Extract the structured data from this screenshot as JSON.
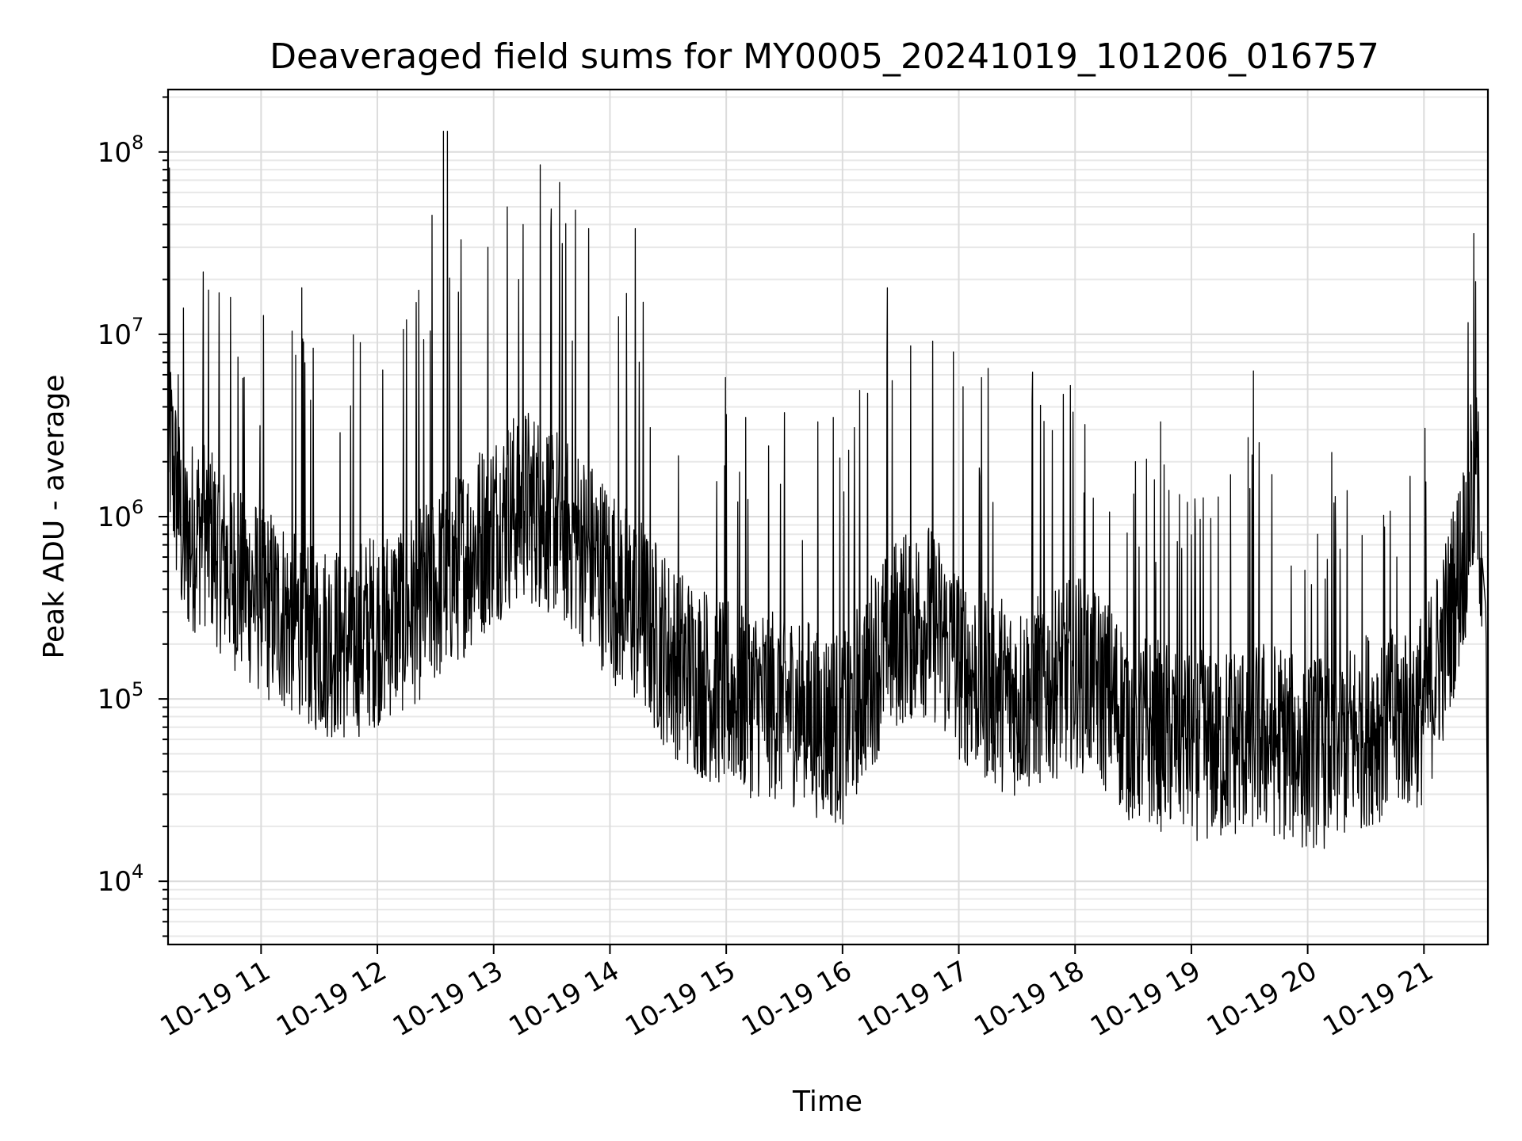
{
  "chart_data": {
    "type": "line",
    "title": "Deaveraged field sums for MY0005_20241019_101206_016757",
    "xlabel": "Time",
    "ylabel": "Peak ADU - average",
    "yscale": "log",
    "ylim": [
      4500,
      220000000
    ],
    "xlim": [
      "10-19 10:12",
      "10-19 21:33"
    ],
    "grid": true,
    "line_color": "#000000",
    "x_ticks": [
      {
        "time": "10-19 11",
        "label": "10-19 11"
      },
      {
        "time": "10-19 12",
        "label": "10-19 12"
      },
      {
        "time": "10-19 13",
        "label": "10-19 13"
      },
      {
        "time": "10-19 14",
        "label": "10-19 14"
      },
      {
        "time": "10-19 15",
        "label": "10-19 15"
      },
      {
        "time": "10-19 16",
        "label": "10-19 16"
      },
      {
        "time": "10-19 17",
        "label": "10-19 17"
      },
      {
        "time": "10-19 18",
        "label": "10-19 18"
      },
      {
        "time": "10-19 19",
        "label": "10-19 19"
      },
      {
        "time": "10-19 20",
        "label": "10-19 20"
      },
      {
        "time": "10-19 21",
        "label": "10-19 21"
      }
    ],
    "y_ticks": [
      {
        "value": 10000,
        "base": "10",
        "exp": "4"
      },
      {
        "value": 100000,
        "base": "10",
        "exp": "5"
      },
      {
        "value": 1000000,
        "base": "10",
        "exp": "6"
      },
      {
        "value": 10000000,
        "base": "10",
        "exp": "7"
      },
      {
        "value": 100000000,
        "base": "10",
        "exp": "8"
      }
    ],
    "series": [
      {
        "points": [
          [
            "10-19 10:12",
            3000000
          ],
          [
            "10-19 10:20",
            700000
          ],
          [
            "10-19 10:30",
            900000
          ],
          [
            "10-19 10:40",
            600000
          ],
          [
            "10-19 10:50",
            450000
          ],
          [
            "10-19 11:00",
            350000
          ],
          [
            "10-19 11:15",
            280000
          ],
          [
            "10-19 11:30",
            220000
          ],
          [
            "10-19 11:45",
            200000
          ],
          [
            "10-19 12:00",
            250000
          ],
          [
            "10-19 12:15",
            300000
          ],
          [
            "10-19 12:30",
            400000
          ],
          [
            "10-19 12:45",
            600000
          ],
          [
            "10-19 13:00",
            900000
          ],
          [
            "10-19 13:15",
            1200000
          ],
          [
            "10-19 13:30",
            1000000
          ],
          [
            "10-19 13:45",
            700000
          ],
          [
            "10-19 14:00",
            450000
          ],
          [
            "10-19 14:15",
            300000
          ],
          [
            "10-19 14:30",
            180000
          ],
          [
            "10-19 14:45",
            130000
          ],
          [
            "10-19 15:00",
            110000
          ],
          [
            "10-19 15:15",
            100000
          ],
          [
            "10-19 15:30",
            95000
          ],
          [
            "10-19 15:45",
            80000
          ],
          [
            "10-19 16:00",
            70000
          ],
          [
            "10-19 16:15",
            150000
          ],
          [
            "10-19 16:30",
            250000
          ],
          [
            "10-19 16:45",
            280000
          ],
          [
            "10-19 17:00",
            160000
          ],
          [
            "10-19 17:15",
            120000
          ],
          [
            "10-19 17:30",
            100000
          ],
          [
            "10-19 17:45",
            120000
          ],
          [
            "10-19 18:00",
            150000
          ],
          [
            "10-19 18:15",
            110000
          ],
          [
            "10-19 18:30",
            70000
          ],
          [
            "10-19 18:45",
            65000
          ],
          [
            "10-19 19:00",
            60000
          ],
          [
            "10-19 19:15",
            55000
          ],
          [
            "10-19 19:30",
            65000
          ],
          [
            "10-19 19:45",
            60000
          ],
          [
            "10-19 20:00",
            50000
          ],
          [
            "10-19 20:15",
            55000
          ],
          [
            "10-19 20:30",
            70000
          ],
          [
            "10-19 20:45",
            80000
          ],
          [
            "10-19 21:00",
            90000
          ],
          [
            "10-19 21:10",
            200000
          ],
          [
            "10-19 21:20",
            600000
          ],
          [
            "10-19 21:27",
            1700000
          ],
          [
            "10-19 21:32",
            300000
          ],
          [
            "10-19 21:33",
            7000
          ]
        ],
        "spikes": [
          [
            "10-19 10:17",
            6000000
          ],
          [
            "10-19 10:30",
            22000000
          ],
          [
            "10-19 10:48",
            7500000
          ],
          [
            "10-19 11:21",
            18000000
          ],
          [
            "10-19 11:51",
            9000000
          ],
          [
            "10-19 12:15",
            12000000
          ],
          [
            "10-19 12:28",
            45000000
          ],
          [
            "10-19 12:34",
            130000000
          ],
          [
            "10-19 12:36",
            130000000
          ],
          [
            "10-19 12:43",
            33000000
          ],
          [
            "10-19 12:57",
            30000000
          ],
          [
            "10-19 13:07",
            50000000
          ],
          [
            "10-19 13:15",
            40000000
          ],
          [
            "10-19 13:24",
            85000000
          ],
          [
            "10-19 13:34",
            68000000
          ],
          [
            "10-19 13:42",
            48000000
          ],
          [
            "10-19 13:49",
            38000000
          ],
          [
            "10-19 14:13",
            38000000
          ],
          [
            "10-19 14:17",
            15000000
          ],
          [
            "10-19 15:10",
            3500000
          ],
          [
            "10-19 15:55",
            3500000
          ],
          [
            "10-19 16:23",
            18000000
          ],
          [
            "10-19 16:57",
            8000000
          ],
          [
            "10-19 17:15",
            6500000
          ],
          [
            "10-19 17:38",
            6200000
          ],
          [
            "10-19 18:05",
            3200000
          ],
          [
            "10-19 18:31",
            2000000
          ],
          [
            "10-19 19:20",
            1700000
          ],
          [
            "10-19 19:32",
            6300000
          ],
          [
            "10-19 20:05",
            800000
          ],
          [
            "10-19 20:46",
            600000
          ],
          [
            "10-19 21:24",
            4100000
          ]
        ]
      }
    ]
  }
}
